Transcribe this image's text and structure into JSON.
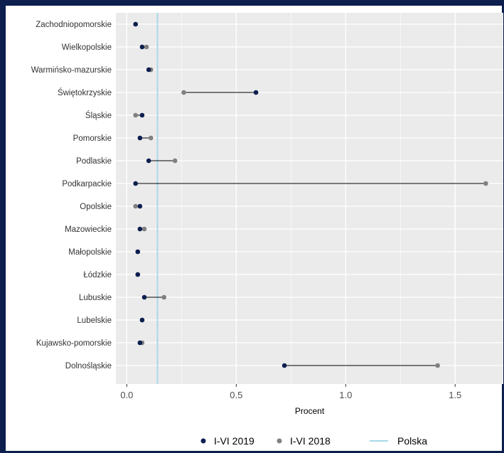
{
  "chart_data": {
    "type": "dumbbell",
    "xlabel": "Procent",
    "xlim": [
      -0.05,
      1.72
    ],
    "x_ticks": [
      0.0,
      0.5,
      1.0,
      1.5
    ],
    "x_tick_labels": [
      "0.0",
      "0.5",
      "1.0",
      "1.5"
    ],
    "grid": true,
    "legend_position": "bottom",
    "categories": [
      "Zachodniopomorskie",
      "Wielkopolskie",
      "Warmińsko-mazurskie",
      "Świętokrzyskie",
      "Śląskie",
      "Pomorskie",
      "Podlaskie",
      "Podkarpackie",
      "Opolskie",
      "Mazowieckie",
      "Małopolskie",
      "Łódzkie",
      "Lubuskie",
      "Lubelskie",
      "Kujawsko-pomorskie",
      "Dolnośląskie"
    ],
    "series": [
      {
        "name": "I-VI 2019",
        "color": "#0d1f4f",
        "values": [
          0.04,
          0.07,
          0.1,
          0.59,
          0.07,
          0.06,
          0.1,
          0.04,
          0.06,
          0.06,
          0.05,
          0.05,
          0.08,
          0.07,
          0.06,
          0.72
        ]
      },
      {
        "name": "I-VI 2018",
        "color": "#808080",
        "values": [
          0.04,
          0.09,
          0.11,
          0.26,
          0.04,
          0.11,
          0.22,
          1.64,
          0.04,
          0.08,
          0.05,
          0.05,
          0.17,
          0.07,
          0.07,
          1.42
        ]
      }
    ],
    "reference_line": {
      "name": "Polska",
      "value": 0.14,
      "color": "#a8d8e8"
    },
    "panel_color": "#ebebeb",
    "grid_color": "#ffffff"
  }
}
